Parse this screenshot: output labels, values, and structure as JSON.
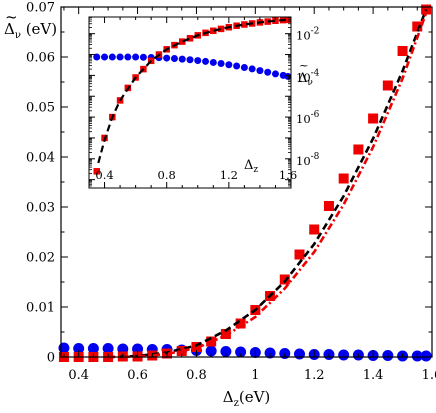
{
  "chart_data": [
    {
      "id": "main",
      "type": "scatter",
      "xlim": [
        0.34,
        1.6
      ],
      "ylim": [
        0,
        0.07
      ],
      "xticks": [
        0.4,
        0.6,
        0.8,
        1,
        1.2,
        1.4,
        1.6
      ],
      "xtick_labels": [
        "0.4",
        "0.6",
        "0.8",
        "1",
        "1.2",
        "1.4",
        "1.6"
      ],
      "yticks": [
        0,
        0.01,
        0.02,
        0.03,
        0.04,
        0.05,
        0.06,
        0.07
      ],
      "ytick_labels": [
        "0",
        "0.01",
        "0.02",
        "0.03",
        "0.04",
        "0.05",
        "0.06",
        "0.07"
      ],
      "xlabel": {
        "main": "Δ",
        "sub": "z",
        "unit": "(eV)"
      },
      "ylabel": {
        "main": "Δ",
        "sub": "ν",
        "unit": " (eV)"
      },
      "grid": false,
      "series": [
        {
          "marker": "square",
          "color": "#ee0000",
          "x": [
            0.35,
            0.4,
            0.45,
            0.5,
            0.55,
            0.6,
            0.65,
            0.7,
            0.75,
            0.8,
            0.85,
            0.9,
            0.95,
            1.0,
            1.05,
            1.1,
            1.15,
            1.2,
            1.25,
            1.3,
            1.35,
            1.4,
            1.45,
            1.5,
            1.55,
            1.58
          ],
          "y": [
            0.0,
            0.0,
            0.0,
            0.0,
            0.0001,
            0.0001,
            0.0003,
            0.0007,
            0.0012,
            0.002,
            0.0031,
            0.0046,
            0.0067,
            0.0094,
            0.0122,
            0.0155,
            0.0205,
            0.0255,
            0.0302,
            0.0357,
            0.0415,
            0.0477,
            0.0543,
            0.0612,
            0.0661,
            0.0695
          ]
        },
        {
          "marker": "circle",
          "color": "#0000ee",
          "x": [
            0.35,
            0.4,
            0.45,
            0.5,
            0.55,
            0.6,
            0.65,
            0.7,
            0.75,
            0.8,
            0.85,
            0.9,
            0.95,
            1.0,
            1.05,
            1.1,
            1.15,
            1.2,
            1.25,
            1.3,
            1.35,
            1.4,
            1.45,
            1.5,
            1.55,
            1.58
          ],
          "y": [
            0.0018,
            0.0017,
            0.0017,
            0.0017,
            0.0016,
            0.0016,
            0.0015,
            0.0015,
            0.0014,
            0.0013,
            0.0012,
            0.0011,
            0.001,
            0.0009,
            0.0008,
            0.0007,
            0.0006,
            0.0005,
            0.0005,
            0.0004,
            0.0004,
            0.0003,
            0.0003,
            0.0002,
            0.0002,
            0.0002
          ]
        },
        {
          "marker": "none",
          "line": "dash",
          "color": "#000000",
          "x": [
            0.5,
            0.6,
            0.7,
            0.8,
            0.9,
            1.0,
            1.1,
            1.2,
            1.3,
            1.4,
            1.5,
            1.58
          ],
          "y": [
            0.0,
            0.0002,
            0.0009,
            0.0023,
            0.0053,
            0.0094,
            0.0151,
            0.0226,
            0.0322,
            0.0437,
            0.0572,
            0.0695
          ]
        },
        {
          "marker": "none",
          "line": "dash-dot",
          "color": "#ee0000",
          "x": [
            0.5,
            0.6,
            0.7,
            0.8,
            0.9,
            1.0,
            1.1,
            1.2,
            1.3,
            1.4,
            1.5,
            1.58
          ],
          "y": [
            0.0,
            0.0001,
            0.0006,
            0.0018,
            0.0043,
            0.008,
            0.0137,
            0.021,
            0.0305,
            0.042,
            0.0557,
            0.0688
          ]
        }
      ]
    },
    {
      "id": "inset",
      "type": "scatter",
      "yscale": "log",
      "xlim": [
        0.3,
        1.6
      ],
      "ylim_exp": [
        -9.4,
        -1.2
      ],
      "xticks": [
        0.4,
        0.8,
        1.2,
        1.6
      ],
      "xtick_labels": [
        "0.4",
        "0.8",
        "1.2",
        "1.6"
      ],
      "yticks_exp": [
        -2,
        -4,
        -6,
        -8
      ],
      "ytick_labels": [
        {
          "base": "10",
          "exp": "-2"
        },
        {
          "base": "10",
          "exp": "-4"
        },
        {
          "base": "10",
          "exp": "-6"
        },
        {
          "base": "10",
          "exp": "-8"
        }
      ],
      "xlabel": {
        "main": "Δ",
        "sub": "z"
      },
      "ylabel": {
        "main": "Δ",
        "sub": "ν"
      },
      "series": [
        {
          "marker": "square",
          "color": "#ee0000",
          "x": [
            0.35,
            0.4,
            0.45,
            0.5,
            0.55,
            0.6,
            0.65,
            0.7,
            0.75,
            0.8,
            0.85,
            0.9,
            0.95,
            1.0,
            1.05,
            1.1,
            1.15,
            1.2,
            1.25,
            1.3,
            1.35,
            1.4,
            1.45,
            1.5,
            1.55,
            1.58
          ],
          "log10y": [
            -8.6,
            -7.0,
            -6.0,
            -5.2,
            -4.6,
            -4.1,
            -3.7,
            -3.3,
            -3.0,
            -2.75,
            -2.55,
            -2.38,
            -2.22,
            -2.08,
            -1.96,
            -1.86,
            -1.77,
            -1.69,
            -1.62,
            -1.56,
            -1.51,
            -1.46,
            -1.42,
            -1.38,
            -1.35,
            -1.33
          ]
        },
        {
          "marker": "circle",
          "color": "#0000ee",
          "x": [
            0.35,
            0.4,
            0.45,
            0.5,
            0.55,
            0.6,
            0.65,
            0.7,
            0.75,
            0.8,
            0.85,
            0.9,
            0.95,
            1.0,
            1.05,
            1.1,
            1.15,
            1.2,
            1.25,
            1.3,
            1.35,
            1.4,
            1.45,
            1.5,
            1.55,
            1.58
          ],
          "log10y": [
            -3.12,
            -3.12,
            -3.12,
            -3.12,
            -3.12,
            -3.12,
            -3.13,
            -3.14,
            -3.15,
            -3.17,
            -3.19,
            -3.22,
            -3.25,
            -3.29,
            -3.33,
            -3.38,
            -3.43,
            -3.49,
            -3.55,
            -3.62,
            -3.69,
            -3.77,
            -3.85,
            -3.93,
            -4.0,
            -4.05
          ]
        },
        {
          "marker": "none",
          "line": "dash",
          "color": "#000000",
          "x": [
            0.36,
            0.4,
            0.45,
            0.5,
            0.6,
            0.7,
            0.8,
            0.9,
            1.0,
            1.1,
            1.2,
            1.3,
            1.4,
            1.5,
            1.58
          ],
          "log10y": [
            -8.2,
            -7.1,
            -6.0,
            -5.2,
            -4.1,
            -3.3,
            -2.75,
            -2.38,
            -2.08,
            -1.86,
            -1.69,
            -1.56,
            -1.46,
            -1.38,
            -1.33
          ]
        }
      ]
    }
  ]
}
